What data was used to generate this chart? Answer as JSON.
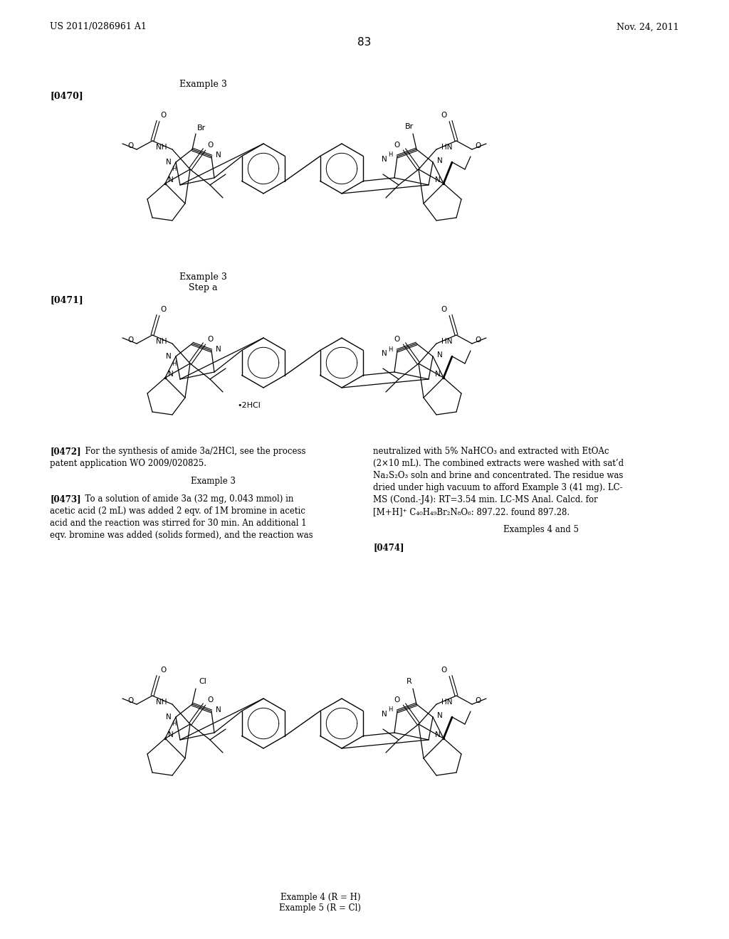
{
  "background_color": "#ffffff",
  "header_left": "US 2011/0286961 A1",
  "header_right": "Nov. 24, 2011",
  "page_number": "83",
  "text_blocks": {
    "t0472_left": "[0472] For the synthesis of amide 3a/2HCl, see the process\npatent application WO 2009/020825.",
    "ex3_center": "Example 3",
    "t0473_left": "[0473] To a solution of amide 3a (32 mg, 0.043 mmol) in\nacetic acid (2 mL) was added 2 eqv. of 1M bromine in acetic\nacid and the reaction was stirred for 30 min. An additional 1\neqv. bromine was added (solids formed), and the reaction was",
    "right_col": "neutralized with 5% NaHCO₃ and extracted with EtOAc\n(2×10 mL). The combined extracts were washed with sat’d\nNa₂S₂O₃ soln and brine and concentrated. The residue was\ndried under high vacuum to afford Example 3 (41 mg). LC-\nMS (Cond.-J4): RT=3.54 min. LC-MS Anal. Calcd. for\n[M+H]⁺ C₄₀H₄₉Br₂N₈O₆: 897.22. found 897.28.",
    "ex45_center": "Examples 4 and 5",
    "t0474_bold": "[0474]",
    "ex4_label": "Example 4 (R = H)",
    "ex5_label": "Example 5 (R = Cl)"
  }
}
